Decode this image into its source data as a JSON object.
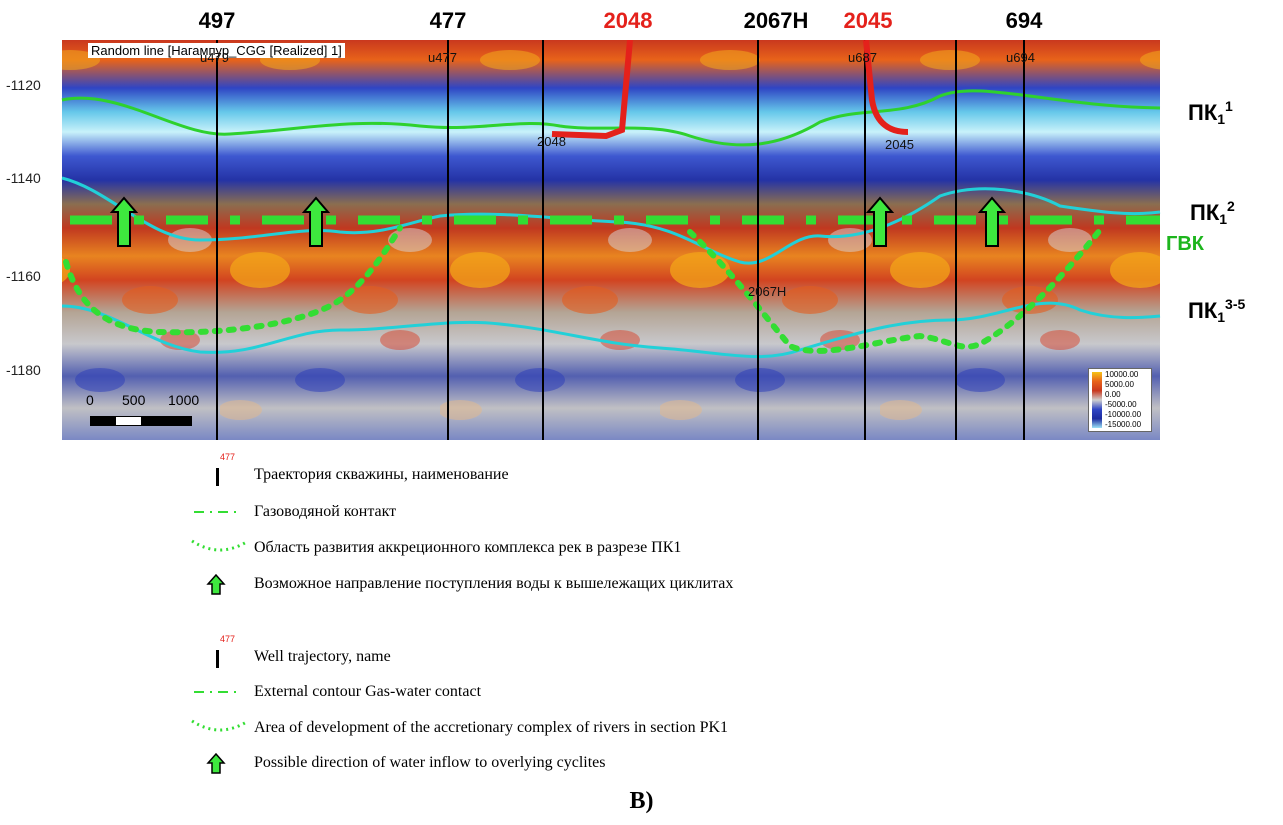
{
  "wells_top": [
    {
      "name": "497",
      "color": "#000000"
    },
    {
      "name": "477",
      "color": "#000000"
    },
    {
      "name": "2048",
      "color": "#e4211b"
    },
    {
      "name": "2067H",
      "color": "#000000"
    },
    {
      "name": "2045",
      "color": "#e4211b"
    },
    {
      "name": "694",
      "color": "#000000"
    }
  ],
  "section": {
    "title": "Random line [Нагампур_CGG [Realized] 1]",
    "depth_ticks": [
      "-1120",
      "-1140",
      "-1160",
      "-1180"
    ],
    "well_tags": [
      "u479",
      "u477",
      "u687",
      "u694"
    ],
    "in_section_labels": [
      "2048",
      "2045",
      "2067H"
    ],
    "scale_bar": {
      "ticks": [
        "0",
        "500",
        "1000"
      ]
    },
    "colorbar": {
      "ticks": [
        "10000.00",
        "5000.00",
        "0.00",
        "-5000.00",
        "-10000.00",
        "-15000.00"
      ]
    },
    "units": [
      {
        "base": "ПК",
        "sub": "1",
        "sup": "1"
      },
      {
        "base": "ПК",
        "sub": "1",
        "sup": "2"
      },
      {
        "base": "ПК",
        "sub": "1",
        "sup": "3-5"
      }
    ],
    "gvk_label": "ГВК"
  },
  "legend_ru": {
    "well_tag": "477",
    "items": [
      "Траектория скважины, наименование",
      "Газоводяной контакт",
      "Область развития аккреционного комплекса рек в разрезе ПК1",
      "Возможное направление поступления воды к вышележащих циклитах"
    ]
  },
  "legend_en": {
    "well_tag": "477",
    "items": [
      "Well trajectory, name",
      "External contour  Gas-water contact",
      "Area of development of the accretionary complex of rivers in section PK1",
      "Possible direction of water inflow to overlying cyclites"
    ]
  },
  "caption": "B)",
  "colors": {
    "gwc": "#33dd33",
    "horizon_green": "#2ed12e",
    "horizon_cyan": "#22d0d8",
    "well_red": "#e4211b",
    "arrow_fill": "#3ee83e"
  }
}
